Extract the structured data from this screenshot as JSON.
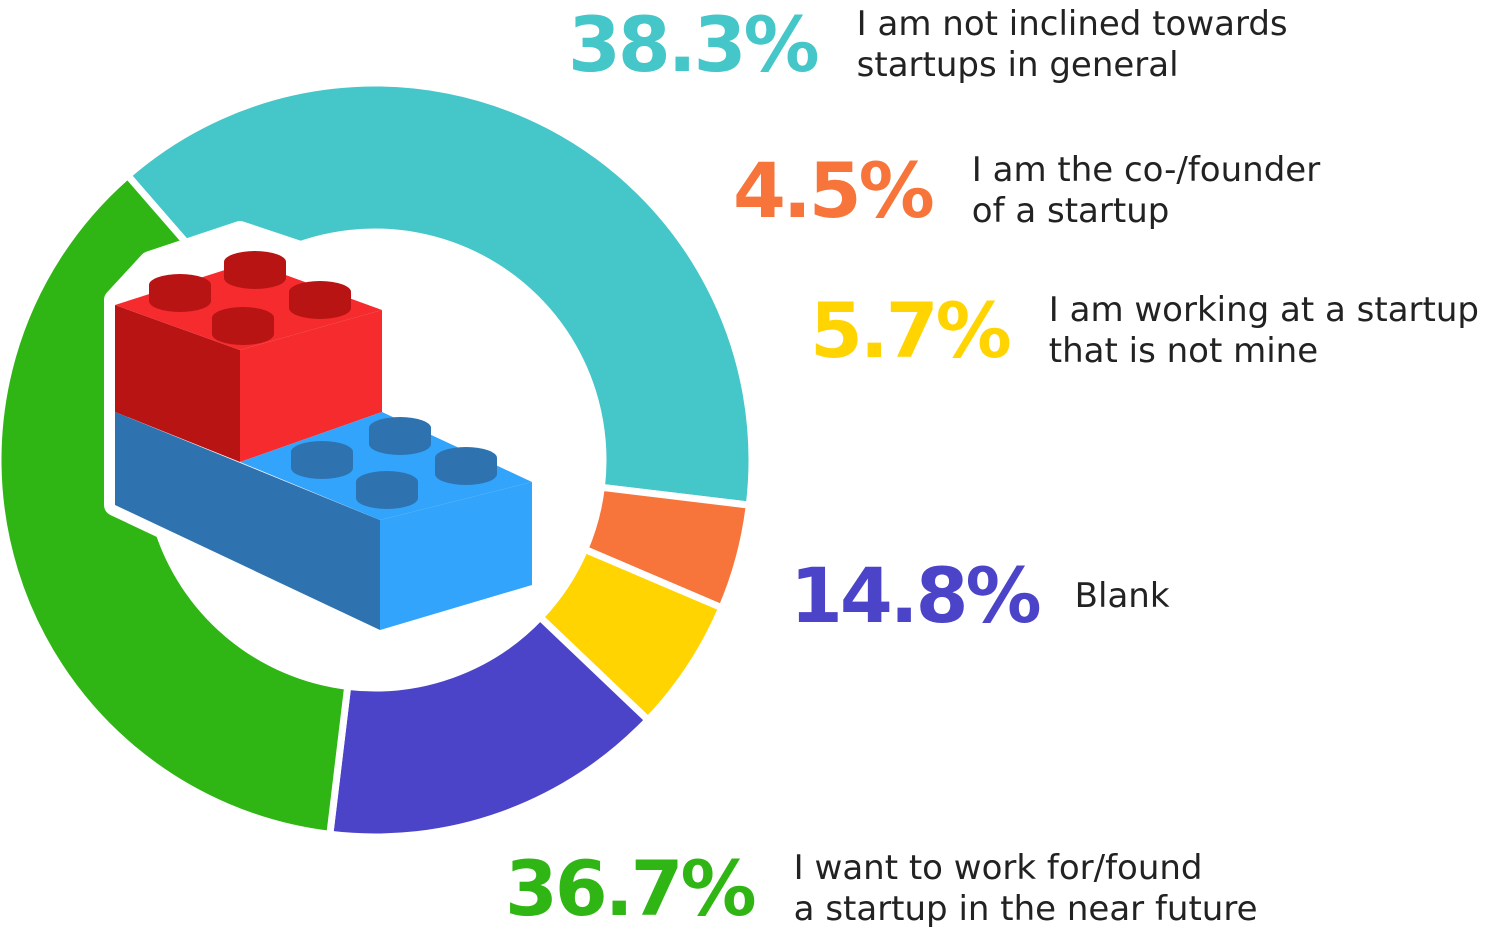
{
  "chart_data": {
    "type": "pie",
    "style": "donut",
    "slices": [
      {
        "label": "I am not inclined towards\nstartups in general",
        "value": 38.3,
        "display": "38.3%",
        "color": "#45C6C8"
      },
      {
        "label": "I am the co-/founder\nof a startup",
        "value": 4.5,
        "display": "4.5%",
        "color": "#F7743A"
      },
      {
        "label": "I am working at a startup\nthat is not mine",
        "value": 5.7,
        "display": "5.7%",
        "color": "#FFD400"
      },
      {
        "label": "Blank",
        "value": 14.8,
        "display": "14.8%",
        "color": "#4B44C8"
      },
      {
        "label": "I want to work for/found\na startup in the near future",
        "value": 36.7,
        "display": "36.7%",
        "color": "#2FB514"
      }
    ],
    "legend": "right",
    "center_icon": "toy-bricks-icon",
    "icon_colors": {
      "red": "#F52B2E",
      "red_shade": "#B81414",
      "blue": "#33A4FB",
      "blue_shade": "#2E73B0"
    }
  }
}
